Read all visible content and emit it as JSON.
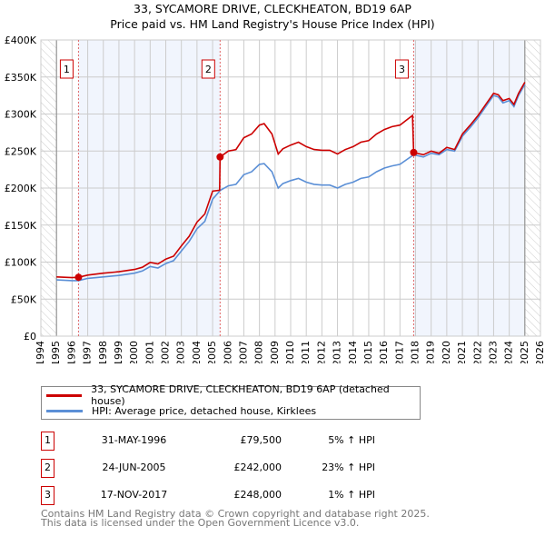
{
  "chart_data": {
    "type": "line",
    "title": "33, SYCAMORE DRIVE, CLECKHEATON, BD19 6AP",
    "subtitle": "Price paid vs. HM Land Registry's House Price Index (HPI)",
    "xlim": [
      1994,
      2026
    ],
    "ylim": [
      0,
      400000
    ],
    "x_ticks": [
      "1994",
      "1995",
      "1996",
      "1997",
      "1998",
      "1999",
      "2000",
      "2001",
      "2002",
      "2003",
      "2004",
      "2005",
      "2006",
      "2007",
      "2008",
      "2009",
      "2010",
      "2011",
      "2012",
      "2013",
      "2014",
      "2015",
      "2016",
      "2017",
      "2018",
      "2019",
      "2020",
      "2021",
      "2022",
      "2023",
      "2024",
      "2025",
      "2026"
    ],
    "y_ticks": [
      {
        "v": 0,
        "label": "£0"
      },
      {
        "v": 50000,
        "label": "£50K"
      },
      {
        "v": 100000,
        "label": "£100K"
      },
      {
        "v": 150000,
        "label": "£150K"
      },
      {
        "v": 200000,
        "label": "£200K"
      },
      {
        "v": 250000,
        "label": "£250K"
      },
      {
        "v": 300000,
        "label": "£300K"
      },
      {
        "v": 350000,
        "label": "£350K"
      },
      {
        "v": 400000,
        "label": "£400K"
      }
    ],
    "grid": true,
    "shaded_ranges": [
      [
        1996.41,
        2005.48
      ],
      [
        2017.88,
        2025.0
      ]
    ],
    "hatched_ranges": [
      [
        1994,
        1995
      ],
      [
        2025,
        2026
      ]
    ],
    "series": [
      {
        "name": "33, SYCAMORE DRIVE, CLECKHEATON, BD19 6AP (detached house)",
        "color": "#cc0000",
        "x": [
          1995,
          1996,
          1996.41,
          1997,
          1998,
          1999,
          2000,
          2000.5,
          2001,
          2001.5,
          2002,
          2002.5,
          2003,
          2003.5,
          2004,
          2004.5,
          2005,
          2005.45,
          2005.48,
          2006,
          2006.5,
          2007,
          2007.5,
          2008,
          2008.3,
          2008.8,
          2009.2,
          2009.5,
          2010,
          2010.5,
          2011,
          2011.5,
          2012,
          2012.5,
          2013,
          2013.5,
          2014,
          2014.5,
          2015,
          2015.5,
          2016,
          2016.5,
          2017,
          2017.8,
          2017.88,
          2018.5,
          2019,
          2019.5,
          2020,
          2020.5,
          2021,
          2021.5,
          2022,
          2022.5,
          2023,
          2023.3,
          2023.6,
          2024,
          2024.3,
          2024.6,
          2025
        ],
        "y": [
          80,
          79,
          79.5,
          82.5,
          85,
          87,
          90,
          93,
          99.5,
          97.5,
          104,
          108,
          122,
          135,
          154,
          165,
          196,
          197,
          242,
          250,
          252,
          268,
          273,
          285,
          287,
          273,
          246,
          253,
          258,
          262,
          256,
          252,
          251,
          251,
          246,
          252,
          256,
          262,
          264,
          273,
          279,
          283,
          285,
          298,
          248,
          245,
          250,
          247,
          255,
          252,
          273,
          285,
          298,
          313,
          328,
          326,
          318,
          321,
          313,
          328,
          343
        ]
      },
      {
        "name": "HPI: Average price, detached house, Kirklees",
        "color": "#5b8fd6",
        "x": [
          1995,
          1996,
          1996.41,
          1997,
          1998,
          1999,
          2000,
          2000.5,
          2001,
          2001.5,
          2002,
          2002.5,
          2003,
          2003.5,
          2004,
          2004.5,
          2005,
          2005.5,
          2006,
          2006.5,
          2007,
          2007.5,
          2008,
          2008.3,
          2008.8,
          2009.2,
          2009.5,
          2010,
          2010.5,
          2011,
          2011.5,
          2012,
          2012.5,
          2013,
          2013.5,
          2014,
          2014.5,
          2015,
          2015.5,
          2016,
          2016.5,
          2017,
          2017.88,
          2018.5,
          2019,
          2019.5,
          2020,
          2020.5,
          2021,
          2021.5,
          2022,
          2022.5,
          2023,
          2023.3,
          2023.6,
          2024,
          2024.3,
          2024.6,
          2025
        ],
        "y": [
          76,
          75,
          75,
          78,
          80,
          82,
          85,
          88,
          94,
          92,
          98,
          102,
          115,
          128,
          145,
          155,
          185,
          197,
          203,
          205,
          218,
          222,
          232,
          233,
          222,
          200,
          206,
          210,
          213,
          208,
          205,
          204,
          204,
          200,
          205,
          208,
          213,
          215,
          222,
          227,
          230,
          232,
          245,
          242,
          247,
          245,
          252,
          250,
          270,
          282,
          295,
          310,
          325,
          323,
          315,
          318,
          310,
          325,
          340
        ]
      }
    ],
    "sales": [
      {
        "n": "1",
        "x": 1996.41,
        "y": 79.5
      },
      {
        "n": "2",
        "x": 2005.48,
        "y": 242
      },
      {
        "n": "3",
        "x": 2017.88,
        "y": 248
      }
    ],
    "y_unit_note": "series y values in £ thousands"
  },
  "legend": {
    "red": "33, SYCAMORE DRIVE, CLECKHEATON, BD19 6AP (detached house)",
    "blue": "HPI: Average price, detached house, Kirklees"
  },
  "transactions": [
    {
      "n": "1",
      "date": "31-MAY-1996",
      "price": "£79,500",
      "pct": "5% ↑ HPI"
    },
    {
      "n": "2",
      "date": "24-JUN-2005",
      "price": "£242,000",
      "pct": "23% ↑ HPI"
    },
    {
      "n": "3",
      "date": "17-NOV-2017",
      "price": "£248,000",
      "pct": "1% ↑ HPI"
    }
  ],
  "footer": [
    "Contains HM Land Registry data © Crown copyright and database right 2025.",
    "This data is licensed under the Open Government Licence v3.0."
  ]
}
